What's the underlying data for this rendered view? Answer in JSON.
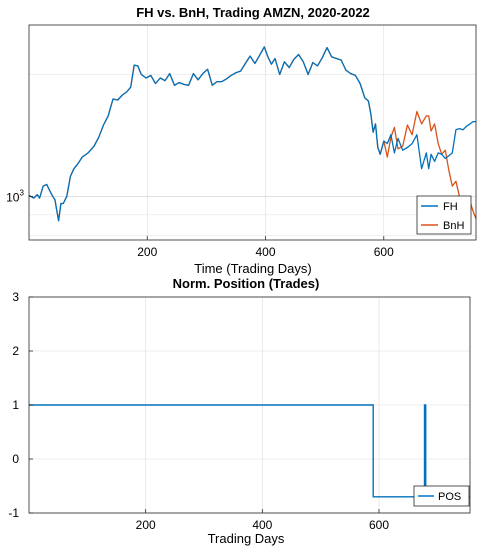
{
  "chart_data": [
    {
      "type": "line",
      "title": "FH vs. BnH, Trading AMZN, 2020-2022",
      "xlabel": "Time (Trading Days)",
      "ylabel": "",
      "yscale": "log",
      "xlim": [
        0,
        756
      ],
      "ylim": [
        780,
        2650
      ],
      "xticks": [
        200,
        400,
        600
      ],
      "yticks": [
        {
          "value": 1000,
          "base": "10",
          "exp": "3"
        }
      ],
      "grid": true,
      "legend_position": "bottom-right",
      "series": [
        {
          "name": "FH",
          "color": "#0072BD",
          "x": [
            0,
            8,
            14,
            18,
            24,
            30,
            34,
            40,
            44,
            46,
            50,
            54,
            58,
            64,
            70,
            76,
            82,
            90,
            100,
            110,
            118,
            126,
            134,
            142,
            150,
            158,
            165,
            172,
            178,
            184,
            190,
            198,
            206,
            214,
            222,
            230,
            238,
            246,
            254,
            262,
            270,
            278,
            286,
            294,
            302,
            310,
            318,
            326,
            334,
            342,
            350,
            358,
            366,
            374,
            382,
            390,
            398,
            404,
            410,
            416,
            424,
            432,
            440,
            448,
            456,
            464,
            472,
            480,
            488,
            496,
            504,
            512,
            520,
            528,
            536,
            544,
            552,
            560,
            568,
            574,
            578,
            582,
            586,
            590,
            594,
            600,
            606,
            612,
            618,
            624,
            632,
            640,
            648,
            656,
            664,
            672,
            676,
            680,
            686,
            692,
            698,
            704,
            710,
            716,
            722,
            728,
            734,
            740,
            746,
            751,
            756
          ],
          "values": [
            1005,
            990,
            1010,
            990,
            1060,
            1070,
            1040,
            1000,
            980,
            940,
            870,
            960,
            960,
            1000,
            1120,
            1170,
            1200,
            1250,
            1280,
            1330,
            1400,
            1500,
            1580,
            1740,
            1730,
            1780,
            1810,
            1860,
            2110,
            2100,
            2000,
            1960,
            1990,
            1900,
            1960,
            1930,
            2010,
            1880,
            1910,
            1890,
            1880,
            2010,
            1940,
            2010,
            2060,
            1880,
            1920,
            1920,
            1950,
            1990,
            2020,
            2040,
            2130,
            2220,
            2130,
            2230,
            2340,
            2210,
            2120,
            2190,
            2000,
            2150,
            2080,
            2180,
            2240,
            2150,
            2000,
            2140,
            2100,
            2200,
            2330,
            2210,
            2190,
            2170,
            2050,
            2010,
            1990,
            1900,
            1750,
            1720,
            1600,
            1440,
            1510,
            1320,
            1270,
            1370,
            1350,
            1420,
            1280,
            1390,
            1300,
            1320,
            1350,
            1420,
            1170,
            1280,
            1170,
            1270,
            1220,
            1280,
            1270,
            1240,
            1260,
            1280,
            1460,
            1470,
            1460,
            1490,
            1510,
            1530,
            1530
          ]
        },
        {
          "name": "BnH",
          "color": "#D95319",
          "x": [
            0,
            8,
            14,
            18,
            24,
            30,
            34,
            40,
            44,
            46,
            50,
            54,
            58,
            64,
            70,
            76,
            82,
            90,
            100,
            110,
            118,
            126,
            134,
            142,
            150,
            158,
            165,
            172,
            178,
            184,
            190,
            198,
            206,
            214,
            222,
            230,
            238,
            246,
            254,
            262,
            270,
            278,
            286,
            294,
            302,
            310,
            318,
            326,
            334,
            342,
            350,
            358,
            366,
            374,
            382,
            390,
            398,
            404,
            410,
            416,
            424,
            432,
            440,
            448,
            456,
            464,
            472,
            480,
            488,
            496,
            504,
            512,
            520,
            528,
            536,
            544,
            552,
            560,
            568,
            574,
            578,
            582,
            586,
            590,
            594,
            600,
            606,
            612,
            618,
            624,
            632,
            640,
            648,
            656,
            664,
            672,
            676,
            680,
            686,
            692,
            698,
            704,
            710,
            716,
            722,
            728,
            734,
            740,
            746,
            751,
            756
          ],
          "values": [
            1005,
            990,
            1010,
            990,
            1060,
            1070,
            1040,
            1000,
            980,
            940,
            870,
            960,
            960,
            1000,
            1120,
            1170,
            1200,
            1250,
            1280,
            1330,
            1400,
            1500,
            1580,
            1740,
            1730,
            1780,
            1810,
            1860,
            2110,
            2100,
            2000,
            1960,
            1990,
            1900,
            1960,
            1930,
            2010,
            1880,
            1910,
            1890,
            1880,
            2010,
            1940,
            2010,
            2060,
            1880,
            1920,
            1920,
            1950,
            1990,
            2020,
            2040,
            2130,
            2220,
            2130,
            2230,
            2340,
            2210,
            2120,
            2190,
            2000,
            2150,
            2080,
            2180,
            2240,
            2150,
            2000,
            2140,
            2100,
            2200,
            2330,
            2210,
            2190,
            2170,
            2050,
            2010,
            1990,
            1900,
            1750,
            1720,
            1600,
            1440,
            1510,
            1320,
            1270,
            1370,
            1250,
            1400,
            1480,
            1310,
            1330,
            1500,
            1420,
            1620,
            1510,
            1580,
            1580,
            1450,
            1510,
            1350,
            1270,
            1300,
            1160,
            1060,
            1090,
            1000,
            990,
            940,
            970,
            920,
            880
          ]
        }
      ]
    },
    {
      "type": "line",
      "title": "Norm. Position (Trades)",
      "xlabel": "Trading Days",
      "ylabel": "",
      "xlim": [
        0,
        756
      ],
      "ylim": [
        -1,
        3
      ],
      "xticks": [
        200,
        400,
        600
      ],
      "yticks": [
        -1,
        0,
        1,
        2,
        3
      ],
      "grid": true,
      "legend_position": "bottom-right",
      "series": [
        {
          "name": "POS",
          "color": "#0072BD",
          "x": [
            0,
            585,
            585,
            590,
            590,
            678,
            678,
            680,
            680,
            683,
            683,
            756
          ],
          "values": [
            1,
            1,
            1,
            1,
            -0.7,
            -0.7,
            1,
            1,
            -0.7,
            -0.7,
            -0.7,
            -0.7
          ]
        }
      ]
    }
  ]
}
